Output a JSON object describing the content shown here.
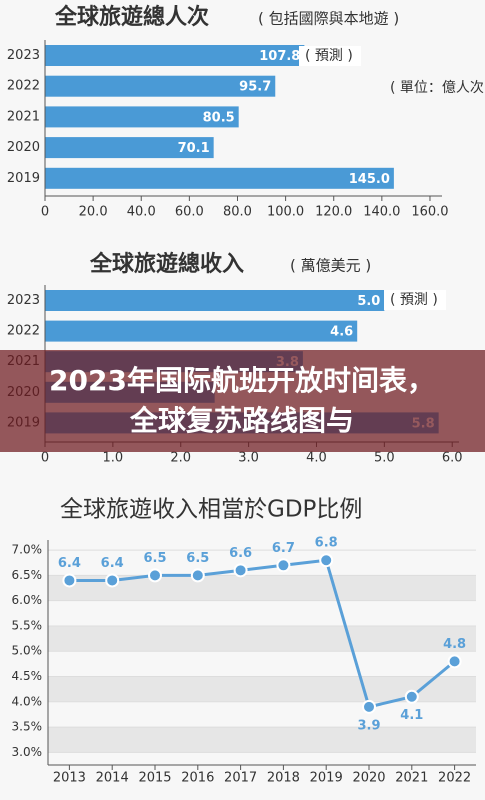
{
  "chart_data": [
    {
      "type": "hbar",
      "title": "全球旅遊總人次",
      "subtitle": "( 包括國際與本地遊 )",
      "categories": [
        "2023",
        "2022",
        "2021",
        "2020",
        "2019"
      ],
      "values": [
        107.8,
        95.7,
        80.5,
        70.1,
        145.0
      ],
      "value_labels": [
        "107.8",
        "95.7",
        "80.5",
        "70.1",
        "145.0"
      ],
      "color": "#4a9ad6",
      "xlim": [
        0,
        165
      ],
      "xticks": [
        {
          "value": 0,
          "label": "0"
        },
        {
          "value": 20,
          "label": "20.0"
        },
        {
          "value": 40,
          "label": "40.0"
        },
        {
          "value": 60,
          "label": "60.0"
        },
        {
          "value": 80,
          "label": "80.0"
        },
        {
          "value": 100,
          "label": "100.0"
        },
        {
          "value": 120,
          "label": "120.0"
        },
        {
          "value": 140,
          "label": "140.0"
        },
        {
          "value": 160,
          "label": "160.0"
        }
      ],
      "annotations": [
        "( 預測 )",
        "( 單位：億人次 )"
      ]
    },
    {
      "type": "hbar",
      "title": "全球旅遊總收入",
      "subtitle": "( 萬億美元 )",
      "categories": [
        "2023",
        "2022",
        "2021",
        "2020",
        "2019"
      ],
      "values": [
        5.0,
        4.6,
        3.8,
        2.5,
        5.8
      ],
      "value_labels": [
        "5.0",
        "4.6",
        "3.8",
        null,
        "5.8"
      ],
      "color": "#4a9ad6",
      "xlim": [
        0,
        6.1
      ],
      "xticks": [
        {
          "value": 0,
          "label": "0"
        },
        {
          "value": 1,
          "label": "1.0"
        },
        {
          "value": 2,
          "label": "2.0"
        },
        {
          "value": 3,
          "label": "3.0"
        },
        {
          "value": 4,
          "label": "4.0"
        },
        {
          "value": 5,
          "label": "5.0"
        },
        {
          "value": 6,
          "label": "6.0"
        }
      ],
      "annotations": [
        "( 預測 )"
      ]
    },
    {
      "type": "line",
      "title": "全球旅遊收入相當於GDP比例",
      "categories": [
        "2013",
        "2014",
        "2015",
        "2016",
        "2017",
        "2018",
        "2019",
        "2020",
        "2021",
        "2022"
      ],
      "values": [
        6.4,
        6.4,
        6.5,
        6.5,
        6.6,
        6.7,
        6.8,
        3.9,
        4.1,
        4.8
      ],
      "color": "#5aa0d8",
      "ylim": [
        2.75,
        7.2
      ],
      "yticks": [
        {
          "value": 3.0,
          "label": "3.0%"
        },
        {
          "value": 3.5,
          "label": "3.5%"
        },
        {
          "value": 4.0,
          "label": "4.0%"
        },
        {
          "value": 4.5,
          "label": "4.5%"
        },
        {
          "value": 5.0,
          "label": "5.0%"
        },
        {
          "value": 5.5,
          "label": "5.5%"
        },
        {
          "value": 6.0,
          "label": "6.0%"
        },
        {
          "value": 6.5,
          "label": "6.5%"
        },
        {
          "value": 7.0,
          "label": "7.0%"
        }
      ]
    }
  ],
  "overlay": {
    "lines": [
      "2023年国际航班开放时间表，",
      "全球复苏路线图与"
    ]
  }
}
